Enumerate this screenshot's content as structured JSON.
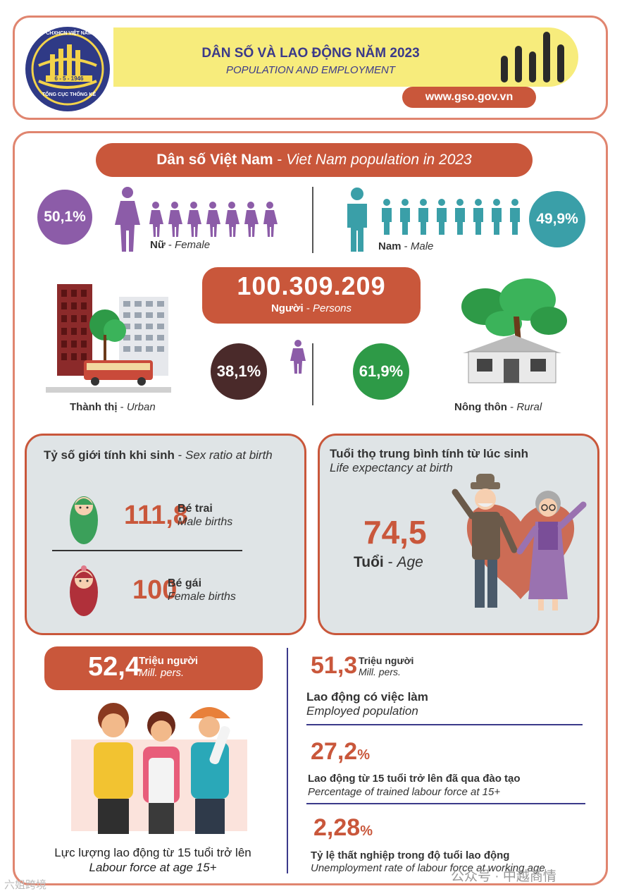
{
  "header": {
    "logo_lines": [
      "CHXHCN VIỆT NAM",
      "6 - 5 - 1946",
      "TỔNG CỤC THỐNG KÊ"
    ],
    "title_vn": "DÂN SỐ VÀ LAO ĐỘNG NĂM 2023",
    "title_en": "POPULATION AND EMPLOYMENT",
    "website": "www.gso.gov.vn"
  },
  "population": {
    "banner_vn": "Dân số Việt Nam",
    "banner_sep": " - ",
    "banner_en": "Viet Nam population in 2023",
    "female_pct": "50,1%",
    "female_vn": "Nữ",
    "female_en": "Female",
    "male_pct": "49,9%",
    "male_vn": "Nam",
    "male_en": "Male",
    "total": "100.309.209",
    "total_vn": "Người",
    "total_en": "Persons",
    "urban_pct": "38,1%",
    "urban_vn": "Thành thị",
    "urban_en": "Urban",
    "rural_pct": "61,9%",
    "rural_vn": "Nông thôn",
    "rural_en": "Rural",
    "sep": " - "
  },
  "sex_ratio": {
    "title_vn": "Tỷ số giới tính khi sinh",
    "title_en": "Sex ratio at birth",
    "male_value": "111,8",
    "male_vn": "Bé trai",
    "male_en": "Male births",
    "female_value": "100",
    "female_vn": "Bé gái",
    "female_en": "Female births"
  },
  "life_expectancy": {
    "title_vn": "Tuổi thọ trung bình tính từ lúc sinh",
    "title_en": "Life expectancy at birth",
    "value": "74,5",
    "unit_vn": "Tuổi",
    "unit_en": "Age"
  },
  "labour": {
    "force_value": "52,4",
    "unit_vn": "Triệu người",
    "unit_en": "Mill. pers.",
    "force_label_vn": "Lực lượng lao động từ 15 tuổi trở lên",
    "force_label_en": "Labour force at age 15+",
    "employed_value": "51,3",
    "employed_vn": "Lao động có việc làm",
    "employed_en": "Employed population",
    "trained_value": "27,2",
    "trained_unit": "%",
    "trained_vn": "Lao động từ 15 tuổi trở lên đã qua đào tạo",
    "trained_en": "Percentage of trained labour force at 15+",
    "unemp_value": "2,28",
    "unemp_unit": "%",
    "unemp_vn": "Tỷ lệ thất nghiệp trong độ tuổi lao động",
    "unemp_en": "Unemployment rate of labour force at working age"
  },
  "watermark": {
    "left": "六姐跨境",
    "right_app": "公众号",
    "right_sep": "·",
    "right_name": "中越商情"
  },
  "colors": {
    "accent": "#c9573b",
    "female": "#8c5ca8",
    "male": "#3a9fa8",
    "urban": "#4a2a2a",
    "rural": "#2e9a47",
    "navy": "#3b3a8a",
    "header_band": "#f7ec7c"
  }
}
